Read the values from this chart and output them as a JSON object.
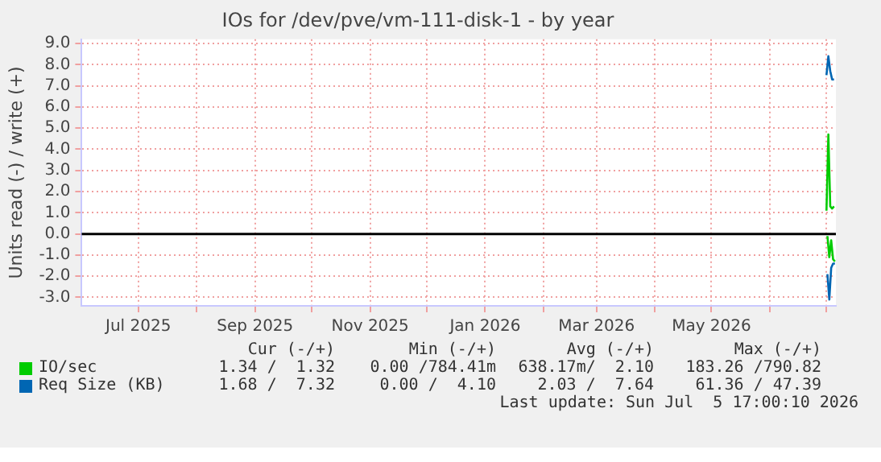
{
  "chart_data": {
    "type": "line",
    "title": "IOs for /dev/pve/vm-111-disk-1 - by year",
    "ylabel": "Units read (-) / write (+)",
    "x": [
      "2026-07-01T00:00",
      "2026-07-02T00:00",
      "2026-07-03T00:00",
      "2026-07-04T00:00",
      "2026-07-05T00:00"
    ],
    "series": [
      {
        "name": "IO/sec",
        "color": "#00cc00",
        "values": [
          1.1,
          4.7,
          1.3,
          1.2,
          1.3
        ]
      },
      {
        "color": "#00cc00",
        "x": [
          "2026-07-01T12:00",
          "2026-07-02T12:00",
          "2026-07-03T12:00",
          "2026-07-04T12:00",
          "2026-07-05T12:00"
        ],
        "values": [
          -0.1,
          -1.1,
          -0.3,
          -1.2,
          -1.3
        ]
      },
      {
        "color": "#0066b3",
        "x": [
          "2026-07-01T12:00",
          "2026-07-02T12:00",
          "2026-07-03T12:00",
          "2026-07-04T12:00",
          "2026-07-05T12:00"
        ],
        "values": [
          -1.9,
          -3.1,
          -1.6,
          -1.4,
          -1.4
        ]
      },
      {
        "name": "Req Size (KB)",
        "color": "#0066b3",
        "values": [
          7.5,
          8.4,
          7.7,
          7.3,
          7.3
        ]
      }
    ],
    "xlim": [
      "2025-06-01",
      "2026-07-06"
    ],
    "xticks": [
      {
        "value": "2025-07-01",
        "label": "Jul 2025"
      },
      {
        "value": "2025-08-01",
        "label": null
      },
      {
        "value": "2025-09-01",
        "label": "Sep 2025"
      },
      {
        "value": "2025-10-01",
        "label": null
      },
      {
        "value": "2025-11-01",
        "label": "Nov 2025"
      },
      {
        "value": "2025-12-01",
        "label": null
      },
      {
        "value": "2026-01-01",
        "label": "Jan 2026"
      },
      {
        "value": "2026-02-01",
        "label": null
      },
      {
        "value": "2026-03-01",
        "label": "Mar 2026"
      },
      {
        "value": "2026-04-01",
        "label": null
      },
      {
        "value": "2026-05-01",
        "label": "May 2026"
      },
      {
        "value": "2026-06-01",
        "label": null
      },
      {
        "value": "2026-07-01",
        "label": null
      }
    ],
    "ylim": [
      -3.4,
      9.2
    ],
    "yticks": [
      {
        "value": -3,
        "label": "-3.0"
      },
      {
        "value": -2,
        "label": "-2.0"
      },
      {
        "value": -1,
        "label": "-1.0"
      },
      {
        "value": 0,
        "label": "0.0"
      },
      {
        "value": 1,
        "label": "1.0"
      },
      {
        "value": 2,
        "label": "2.0"
      },
      {
        "value": 3,
        "label": "3.0"
      },
      {
        "value": 4,
        "label": "4.0"
      },
      {
        "value": 5,
        "label": "5.0"
      },
      {
        "value": 6,
        "label": "6.0"
      },
      {
        "value": 7,
        "label": "7.0"
      },
      {
        "value": 8,
        "label": "8.0"
      },
      {
        "value": 9,
        "label": "9.0"
      }
    ],
    "ref_lines": [
      {
        "axis": "y",
        "value": 0,
        "color": "#000000"
      }
    ],
    "grid": true,
    "legend": "bottom",
    "marker": "none",
    "line_style": "solid",
    "annotations": [
      "Cur (-/+)",
      "Min (-/+)",
      "Avg (-/+)",
      "Max (-/+)",
      "1.34 /  1.32",
      "0.00 /784.41m",
      "638.17m/  2.10",
      "183.26 /790.82",
      "1.68 /  7.32",
      "0.00 /  4.10",
      "2.03 /  7.64",
      "61.36 / 47.39",
      "Last update: Sun Jul  5 17:00:10 2026"
    ]
  }
}
